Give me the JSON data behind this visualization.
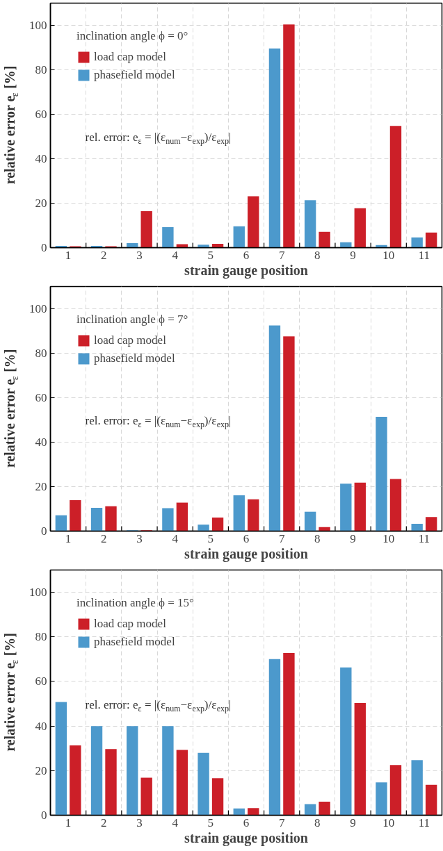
{
  "chart_data": [
    {
      "type": "bar",
      "categories": [
        "1",
        "2",
        "3",
        "4",
        "5",
        "6",
        "7",
        "8",
        "9",
        "10",
        "11"
      ],
      "xlabel": "strain gauge position",
      "ylabel": "relative error e$_{ε}$ [%]",
      "legend_title": "inclination angle ϕ = 0°",
      "annotations": [
        "rel. error: e$_{ε}$ = |(ε$_{num}$−ε$_{exp}$)/ε$_{exp}$|"
      ],
      "ylim": [
        0,
        110
      ],
      "yticks": [
        0,
        20,
        40,
        60,
        80,
        100
      ],
      "grid": true,
      "legend": "top left",
      "series": [
        {
          "name": "phasefield model",
          "color": "#4c99cc",
          "values": [
            0.8,
            0.8,
            2,
            9.2,
            1.3,
            9.6,
            89.6,
            21.3,
            2.4,
            1.2,
            4.6
          ]
        },
        {
          "name": "load cap model",
          "color": "#cc1f28",
          "values": [
            0.6,
            0.6,
            16.4,
            1.6,
            1.7,
            23.1,
            100.4,
            7.1,
            17.7,
            54.8,
            6.8
          ]
        }
      ]
    },
    {
      "type": "bar",
      "categories": [
        "1",
        "2",
        "3",
        "4",
        "5",
        "6",
        "7",
        "8",
        "9",
        "10",
        "11"
      ],
      "xlabel": "strain gauge position",
      "ylabel": "relative error e$_{ε}$ [%]",
      "legend_title": "inclination angle ϕ = 7°",
      "annotations": [
        "rel. error: e$_{ε}$ = |(ε$_{num}$−ε$_{exp}$)/ε$_{exp}$|"
      ],
      "ylim": [
        0,
        110
      ],
      "yticks": [
        0,
        20,
        40,
        60,
        80,
        100
      ],
      "grid": true,
      "legend": "top left",
      "series": [
        {
          "name": "phasefield model",
          "color": "#4c99cc",
          "values": [
            7.1,
            10.5,
            0.4,
            10.3,
            2.9,
            16.1,
            92.5,
            8.7,
            21.3,
            51.4,
            3.3
          ]
        },
        {
          "name": "load cap model",
          "color": "#cc1f28",
          "values": [
            13.9,
            11.2,
            0.4,
            12.8,
            6.1,
            14.3,
            87.6,
            1.8,
            21.8,
            23.4,
            6.3
          ]
        }
      ]
    },
    {
      "type": "bar",
      "categories": [
        "1",
        "2",
        "3",
        "4",
        "5",
        "6",
        "7",
        "8",
        "9",
        "10",
        "11"
      ],
      "xlabel": "strain gauge position",
      "ylabel": "relative error e$_{ε}$ [%]",
      "legend_title": "inclination angle ϕ = 15°",
      "annotations": [
        "rel. error: e$_{ε}$ = |(ε$_{num}$−ε$_{exp}$)/ε$_{exp}$|"
      ],
      "ylim": [
        0,
        110
      ],
      "yticks": [
        0,
        20,
        40,
        60,
        80,
        100
      ],
      "grid": true,
      "legend": "top left",
      "series": [
        {
          "name": "phasefield model",
          "color": "#4c99cc",
          "values": [
            50.8,
            40,
            40,
            40,
            28.0,
            3.0,
            70.0,
            5.0,
            66.3,
            14.7,
            24.7
          ]
        },
        {
          "name": "load cap model",
          "color": "#cc1f28",
          "values": [
            31.3,
            29.7,
            16.8,
            29.3,
            16.6,
            3.2,
            72.8,
            6.1,
            50.3,
            22.5,
            13.6
          ]
        }
      ]
    }
  ]
}
